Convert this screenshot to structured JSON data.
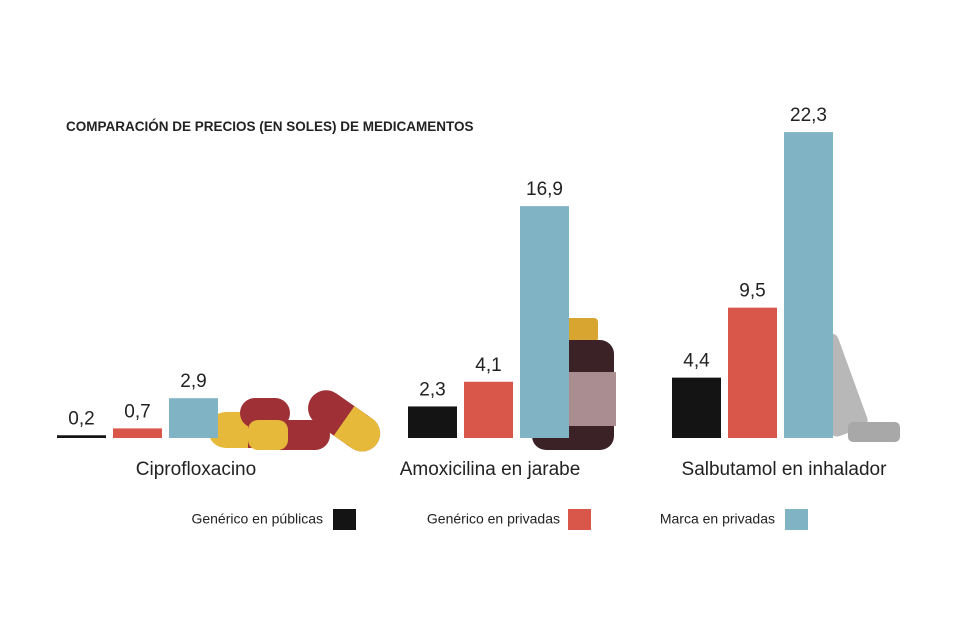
{
  "chart_data": {
    "type": "bar",
    "title": "COMPARACIÓN DE PRECIOS (EN SOLES) DE MEDICAMENTOS",
    "categories": [
      "Ciprofloxacino",
      "Amoxicilina en jarabe",
      "Salbutamol en inhalador"
    ],
    "series": [
      {
        "name": "Genérico en públicas",
        "color": "#141414",
        "values": [
          0.2,
          2.3,
          4.4
        ],
        "value_labels": [
          "0,2",
          "2,3",
          "4,4"
        ]
      },
      {
        "name": "Genérico en privadas",
        "color": "#d9574a",
        "values": [
          0.7,
          4.1,
          9.5
        ],
        "value_labels": [
          "0,7",
          "4,1",
          "9,5"
        ]
      },
      {
        "name": "Marca en privadas",
        "color": "#80b4c4",
        "values": [
          2.9,
          16.9,
          22.3
        ],
        "value_labels": [
          "2,9",
          "16,9",
          "22,3"
        ]
      }
    ],
    "legend": "bottom"
  }
}
